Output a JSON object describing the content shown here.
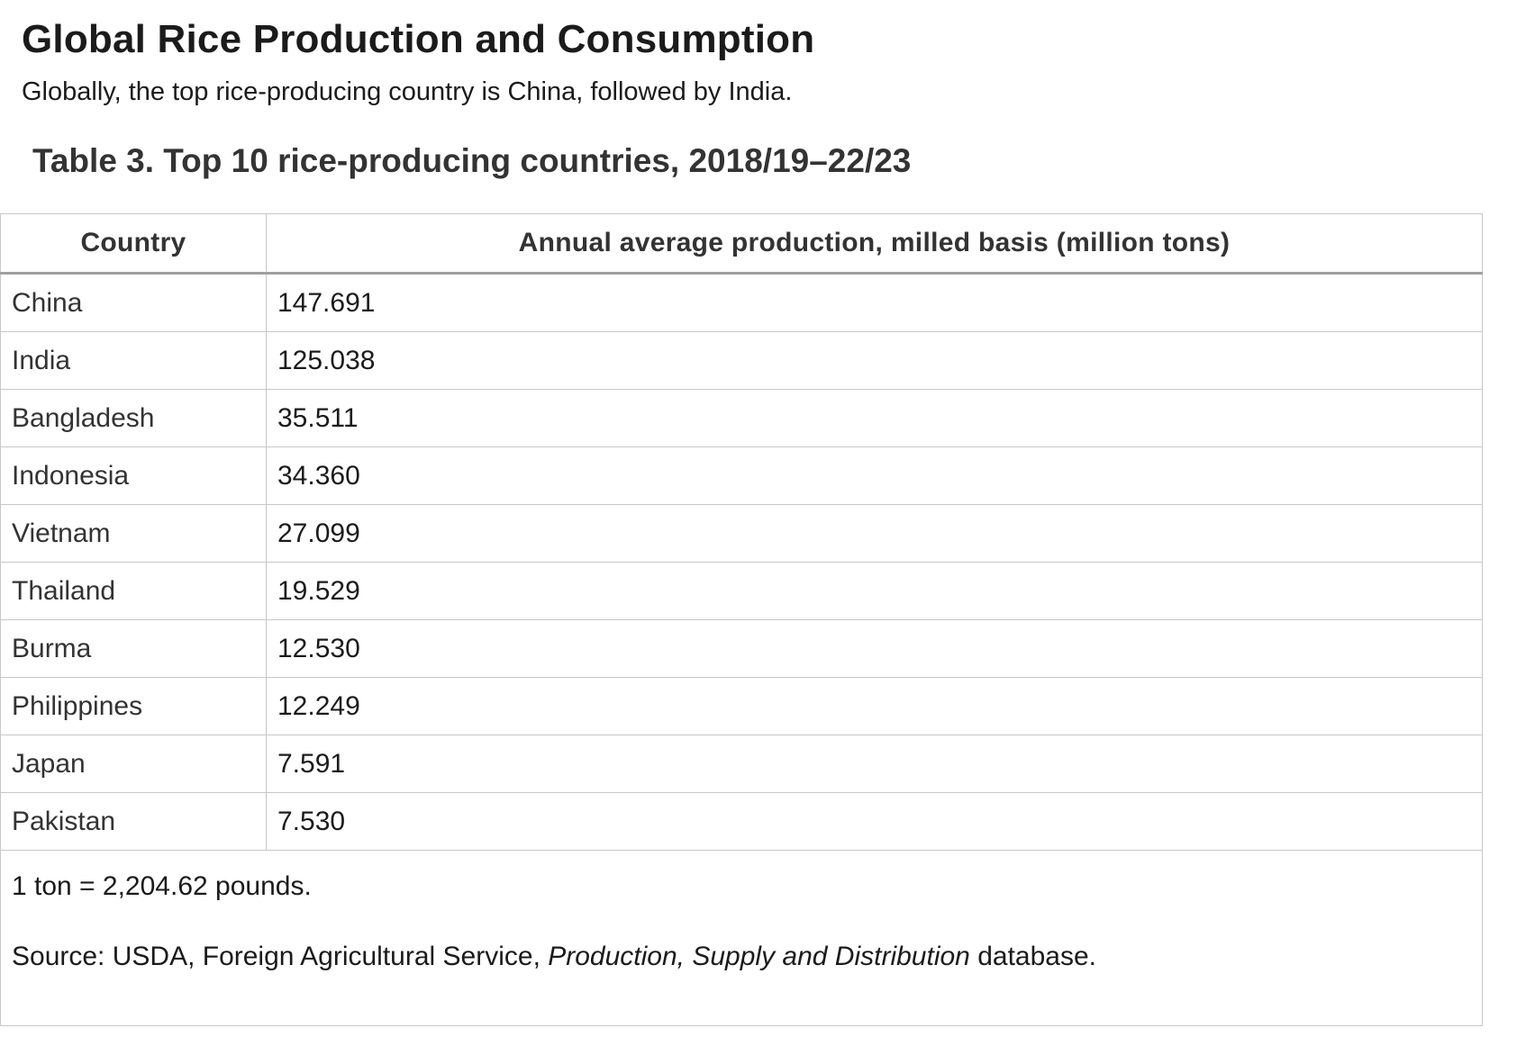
{
  "heading": "Global Rice Production and Consumption",
  "intro": "Globally, the top rice-producing country is China, followed by India.",
  "table": {
    "caption": "Table 3. Top 10 rice-producing countries, 2018/19–22/23",
    "columns": [
      "Country",
      "Annual average production, milled basis (million tons)"
    ],
    "rows": [
      {
        "country": "China",
        "value": "147.691"
      },
      {
        "country": "India",
        "value": "125.038"
      },
      {
        "country": "Bangladesh",
        "value": "35.511"
      },
      {
        "country": "Indonesia",
        "value": "34.360"
      },
      {
        "country": "Vietnam",
        "value": "27.099"
      },
      {
        "country": "Thailand",
        "value": "19.529"
      },
      {
        "country": "Burma",
        "value": "12.530"
      },
      {
        "country": "Philippines",
        "value": "12.249"
      },
      {
        "country": "Japan",
        "value": "7.591"
      },
      {
        "country": "Pakistan",
        "value": "7.530"
      }
    ],
    "note": "1 ton = 2,204.62 pounds.",
    "source": {
      "prefix": "Source: USDA, Foreign Agricultural Service, ",
      "title": "Production, Supply and Distribution",
      "suffix": " database."
    }
  }
}
